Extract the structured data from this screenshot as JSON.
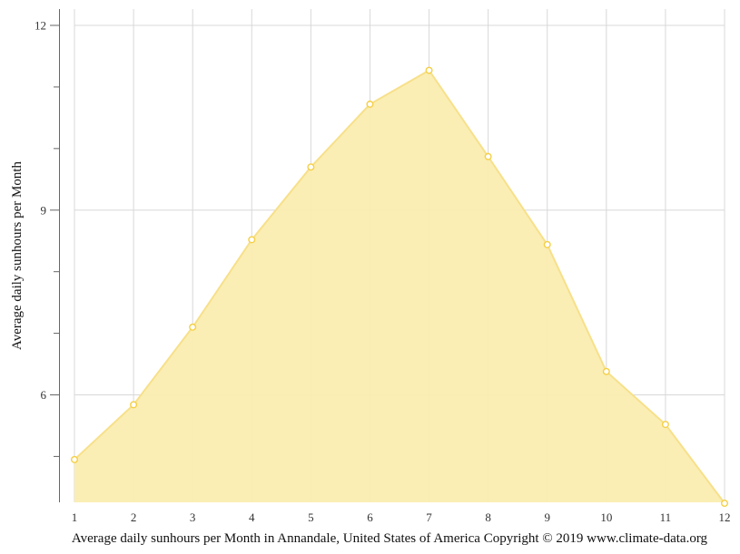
{
  "chart_data": {
    "type": "area",
    "title": "",
    "xlabel": "Average daily sunhours per Month in Annandale, United States of America Copyright © 2019 www.climate-data.org",
    "ylabel": "Average daily sunhours per Month",
    "categories": [
      "1",
      "2",
      "3",
      "4",
      "5",
      "6",
      "7",
      "8",
      "9",
      "10",
      "11",
      "12"
    ],
    "series": [
      {
        "name": "Average daily sunhours",
        "values": [
          4.95,
          5.84,
          7.1,
          8.52,
          9.7,
          10.72,
          11.27,
          9.87,
          8.44,
          6.38,
          5.52,
          4.24
        ]
      }
    ],
    "ylim": [
      4.24,
      12.27
    ],
    "yticks": [
      "6",
      "9",
      "12"
    ],
    "grid": true,
    "legend": "none",
    "colors": {
      "fill": "#faedb0",
      "line": "#f7e08a",
      "marker": "#f5cf45",
      "grid": "#d8d8d8",
      "axis": "#666666"
    }
  }
}
